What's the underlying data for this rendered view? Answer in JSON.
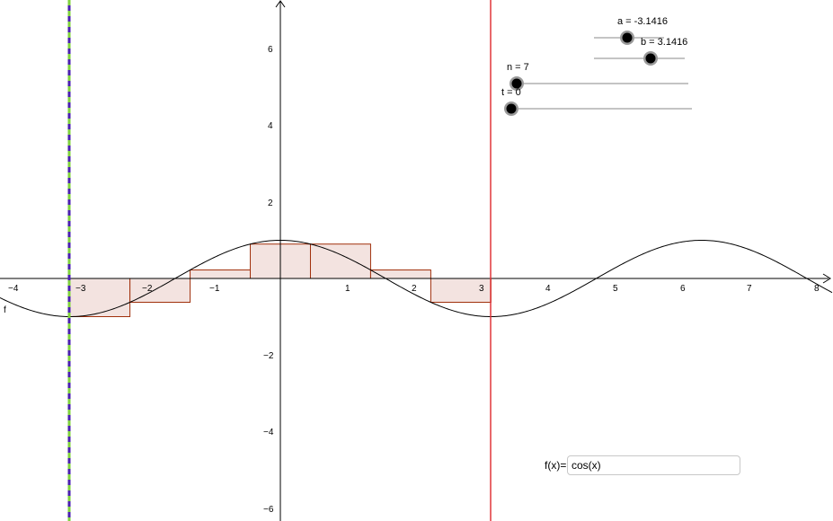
{
  "axes": {
    "x_ticks": [
      "−4",
      "−3",
      "−2",
      "−1",
      "1",
      "2",
      "3",
      "4",
      "5",
      "6",
      "7",
      "8"
    ],
    "y_ticks": [
      "−6",
      "−4",
      "−2",
      "2",
      "4",
      "6"
    ]
  },
  "function": {
    "label": "f",
    "expression": "cos(x)",
    "color": "#000000"
  },
  "rectangles": {
    "count": 7,
    "fill": "#f3e3e0",
    "stroke": "#a0300c"
  },
  "vertical_lines": {
    "a_line": {
      "x": -3.1416,
      "colors": [
        "#4a1fb0",
        "#7fd23c"
      ]
    },
    "b_line": {
      "x": 3.1416,
      "color": "#e0363a"
    }
  },
  "sliders": {
    "a": {
      "caption": "a = -3.1416",
      "value": -3.1416
    },
    "b": {
      "caption": "b = 3.1416",
      "value": 3.1416
    },
    "n": {
      "caption": "n = 7",
      "value": 7
    },
    "t": {
      "caption": "t = 0",
      "value": 0
    }
  },
  "input_bar": {
    "label": "f(x)=",
    "value": "cos(x)"
  }
}
